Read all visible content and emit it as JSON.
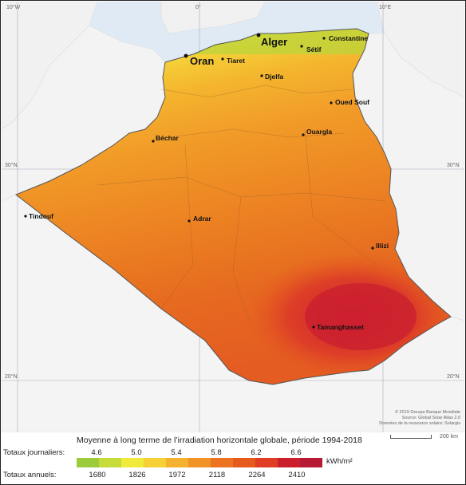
{
  "graticule": {
    "lon_left": "10°W",
    "lon_mid": "0°",
    "lon_right": "10°E",
    "lat_30": "30°N",
    "lat_20": "20°N"
  },
  "cities": [
    {
      "name": "Alger",
      "size": "large"
    },
    {
      "name": "Constantine",
      "size": "small"
    },
    {
      "name": "Oran",
      "size": "large"
    },
    {
      "name": "Tiaret",
      "size": "small"
    },
    {
      "name": "Sétif",
      "size": "small"
    },
    {
      "name": "Djelfa",
      "size": "small"
    },
    {
      "name": "Oued Souf",
      "size": "small"
    },
    {
      "name": "Ouargla",
      "size": "small"
    },
    {
      "name": "Béchar",
      "size": "small"
    },
    {
      "name": "Tindouf",
      "size": "small"
    },
    {
      "name": "Adrar",
      "size": "small"
    },
    {
      "name": "Illizi",
      "size": "small"
    },
    {
      "name": "Tamanghasset",
      "size": "small"
    }
  ],
  "legend": {
    "title": "Moyenne à long terme de l’irradiation horizontale globale, période 1994-2018",
    "daily_label": "Totaux journaliers:",
    "annual_label": "Totaux annuels:",
    "daily_values": [
      "4.6",
      "5.0",
      "5.4",
      "5.8",
      "6.2",
      "6.6"
    ],
    "annual_values": [
      "1680",
      "1826",
      "1972",
      "2118",
      "2264",
      "2410"
    ],
    "unit": "kWh/m²",
    "colors": [
      "#9ccc3c",
      "#c6dc3a",
      "#f0ea3c",
      "#f7d038",
      "#f4b22e",
      "#f19326",
      "#ec7420",
      "#e65a1e",
      "#df3d24",
      "#cc1f2e",
      "#b61a35"
    ],
    "credits": [
      "© 2019 Groupe Banque Mondiale",
      "Source: Global Solar Atlas 2.0",
      "Données de la ressource solaire: Solargis"
    ],
    "scale": "200 km"
  }
}
